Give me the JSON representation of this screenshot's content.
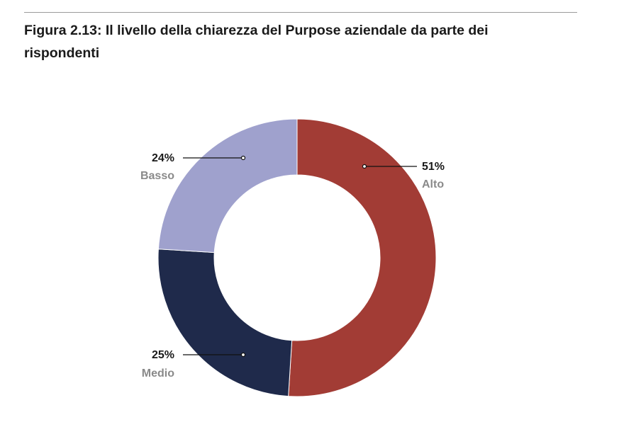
{
  "figure": {
    "title": "Figura 2.13: Il livello della chiarezza del Purpose aziendale da parte dei rispondenti"
  },
  "chart_data": {
    "type": "pie",
    "variant": "donut",
    "title": "Figura 2.13: Il livello della chiarezza del Purpose aziendale da parte dei rispondenti",
    "categories": [
      "Alto",
      "Medio",
      "Basso"
    ],
    "values": [
      51,
      25,
      24
    ],
    "value_labels": [
      "51%",
      "25%",
      "24%"
    ],
    "colors": [
      "#a23c35",
      "#1f2a4b",
      "#9fa1cd"
    ],
    "legend": "none"
  }
}
